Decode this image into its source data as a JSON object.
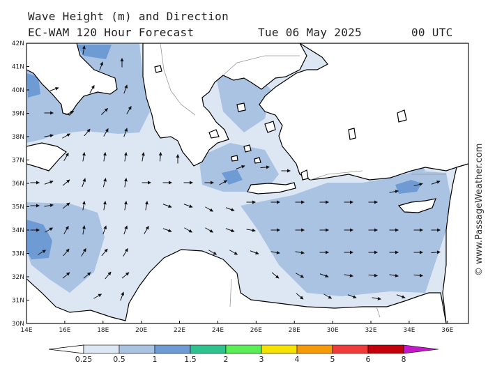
{
  "header": {
    "line1": "Wave Height (m) and Direction",
    "model": "EC-WAM 120 Hour Forecast",
    "date": "Tue 06 May 2025",
    "time": "00 UTC"
  },
  "credit": "© www.PassageWeather.com",
  "axes": {
    "lat_labels": [
      "42N",
      "41N",
      "40N",
      "39N",
      "38N",
      "37N",
      "36N",
      "35N",
      "34N",
      "33N",
      "32N",
      "31N",
      "30N"
    ],
    "lon_labels": [
      "14E",
      "16E",
      "18E",
      "20E",
      "22E",
      "24E",
      "26E",
      "28E",
      "30E",
      "32E",
      "34E",
      "36E"
    ]
  },
  "legend": {
    "labels": [
      "0.25",
      "0.5",
      "1",
      "1.5",
      "2",
      "3",
      "4",
      "5",
      "6",
      "8"
    ],
    "colors": [
      "#dde7f4",
      "#aac3e3",
      "#6f9bd4",
      "#2ec28e",
      "#5cee57",
      "#f6e200",
      "#f69a07",
      "#ef3b3b",
      "#c4000c",
      "#c519c9"
    ]
  },
  "colors": {
    "sea_light": "#dde7f4",
    "sea_mid": "#aac3e3",
    "sea_dark": "#6f9bd4",
    "land": "#ffffff",
    "coast": "#000000"
  }
}
